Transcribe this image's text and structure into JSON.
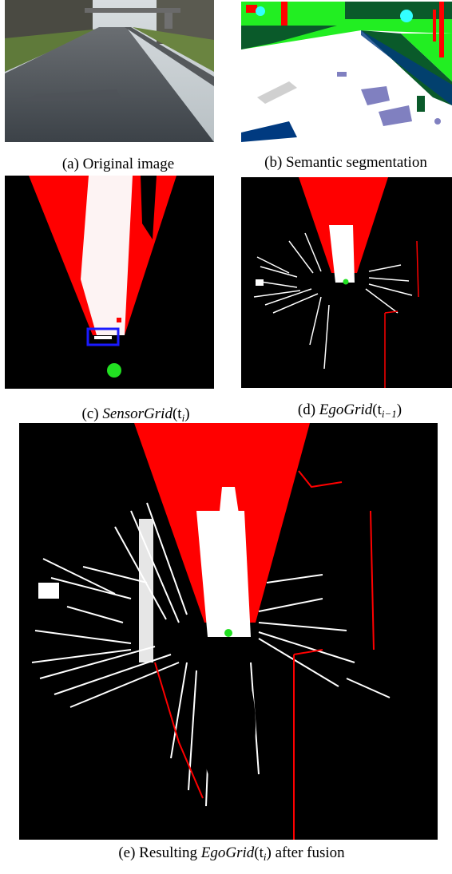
{
  "figure": {
    "panels": [
      {
        "id": "a",
        "caption": "(a) Original image",
        "content": "photo"
      },
      {
        "id": "b",
        "caption": "(b) Semantic segmentation",
        "content": "segmentation"
      },
      {
        "id": "c",
        "caption_prefix": "(c) ",
        "caption_name": "SensorGrid",
        "caption_arg": "(t",
        "caption_sub": "i",
        "caption_close": ")",
        "content": "grid"
      },
      {
        "id": "d",
        "caption_prefix": "(d) ",
        "caption_name": "EgoGrid",
        "caption_arg": "(t",
        "caption_sub": "i−1",
        "caption_close": ")",
        "content": "grid"
      },
      {
        "id": "e",
        "caption_prefix": "(e) Resulting ",
        "caption_name": "EgoGrid",
        "caption_arg": "(t",
        "caption_sub": "i",
        "caption_close": ") after fusion",
        "content": "grid"
      }
    ]
  },
  "colors": {
    "occupied": "#ff0000",
    "free": "#ffffff",
    "unknown": "#000000",
    "ego_vehicle": "#22e022",
    "highlight_box": "#1a1aff",
    "seg_road": "#ffffff",
    "seg_vegetation": "#22ee22",
    "seg_sidewalk": "#003a80",
    "seg_dark_green": "#0a5a2a",
    "seg_purple": "#8080c0",
    "seg_red": "#ff0000",
    "seg_cyan": "#33ffff"
  }
}
